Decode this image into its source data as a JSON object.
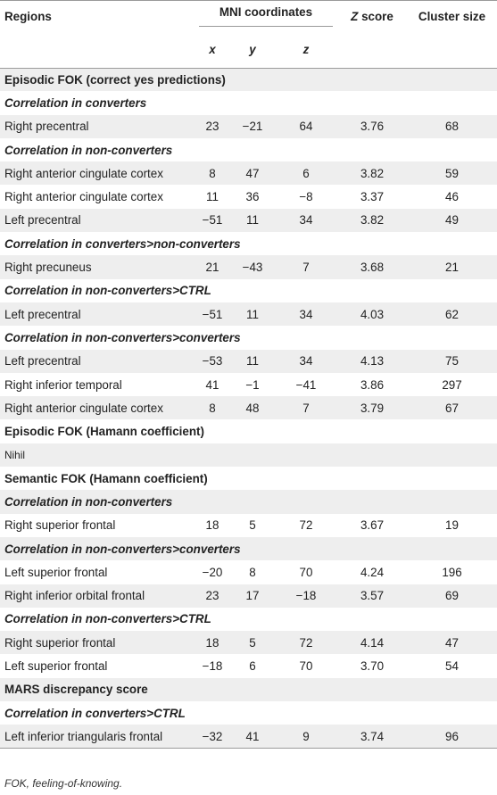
{
  "headers": {
    "regions": "Regions",
    "mni": "MNI coordinates",
    "x": "x",
    "y": "y",
    "z": "z",
    "zscore": "Z score",
    "zscore_italic_part": "Z",
    "zscore_rest": " score",
    "cluster": "Cluster size"
  },
  "rows": [
    {
      "type": "section",
      "label": "Episodic FOK (correct yes predictions)"
    },
    {
      "type": "sub",
      "label": "Correlation in converters"
    },
    {
      "type": "data",
      "region": "Right precentral",
      "x": "23",
      "y": "−21",
      "z": "64",
      "zscore": "3.76",
      "cluster": "68"
    },
    {
      "type": "sub",
      "label": "Correlation in non-converters"
    },
    {
      "type": "data",
      "region": "Right anterior cingulate cortex",
      "x": "8",
      "y": "47",
      "z": "6",
      "zscore": "3.82",
      "cluster": "59"
    },
    {
      "type": "data",
      "region": "Right anterior cingulate cortex",
      "x": "11",
      "y": "36",
      "z": "−8",
      "zscore": "3.37",
      "cluster": "46"
    },
    {
      "type": "data",
      "region": "Left precentral",
      "x": "−51",
      "y": "11",
      "z": "34",
      "zscore": "3.82",
      "cluster": "49"
    },
    {
      "type": "sub",
      "label": "Correlation in converters>non-converters"
    },
    {
      "type": "data",
      "region": "Right precuneus",
      "x": "21",
      "y": "−43",
      "z": "7",
      "zscore": "3.68",
      "cluster": "21"
    },
    {
      "type": "sub",
      "label": "Correlation in non-converters>CTRL"
    },
    {
      "type": "data",
      "region": "Left precentral",
      "x": "−51",
      "y": "11",
      "z": "34",
      "zscore": "4.03",
      "cluster": "62"
    },
    {
      "type": "sub",
      "label": "Correlation in non-converters>converters"
    },
    {
      "type": "data",
      "region": "Left precentral",
      "x": "−53",
      "y": "11",
      "z": "34",
      "zscore": "4.13",
      "cluster": "75"
    },
    {
      "type": "data",
      "region": "Right inferior temporal",
      "x": "41",
      "y": "−1",
      "z": "−41",
      "zscore": "3.86",
      "cluster": "297"
    },
    {
      "type": "data",
      "region": "Right anterior cingulate cortex",
      "x": "8",
      "y": "48",
      "z": "7",
      "zscore": "3.79",
      "cluster": "67"
    },
    {
      "type": "section",
      "label": "Episodic FOK (Hamann coefficient)"
    },
    {
      "type": "plain",
      "label": "Nihil"
    },
    {
      "type": "section",
      "label": "Semantic FOK (Hamann coefficient)"
    },
    {
      "type": "sub",
      "label": "Correlation in non-converters"
    },
    {
      "type": "data",
      "region": "Right superior frontal",
      "x": "18",
      "y": "5",
      "z": "72",
      "zscore": "3.67",
      "cluster": "19"
    },
    {
      "type": "sub",
      "label": "Correlation in non-converters>converters"
    },
    {
      "type": "data",
      "region": "Left superior frontal",
      "x": "−20",
      "y": "8",
      "z": "70",
      "zscore": "4.24",
      "cluster": "196"
    },
    {
      "type": "data",
      "region": "Right inferior orbital frontal",
      "x": "23",
      "y": "17",
      "z": "−18",
      "zscore": "3.57",
      "cluster": "69"
    },
    {
      "type": "sub",
      "label": "Correlation in non-converters>CTRL"
    },
    {
      "type": "data",
      "region": "Right superior frontal",
      "x": "18",
      "y": "5",
      "z": "72",
      "zscore": "4.14",
      "cluster": "47"
    },
    {
      "type": "data",
      "region": "Left superior frontal",
      "x": "−18",
      "y": "6",
      "z": "70",
      "zscore": "3.70",
      "cluster": "54"
    },
    {
      "type": "section",
      "label": "MARS discrepancy score"
    },
    {
      "type": "sub",
      "label": "Correlation in converters>CTRL"
    },
    {
      "type": "data",
      "region": "Left inferior triangularis frontal",
      "x": "−32",
      "y": "41",
      "z": "9",
      "zscore": "3.74",
      "cluster": "96"
    }
  ],
  "footnote": "FOK, feeling-of-knowing."
}
